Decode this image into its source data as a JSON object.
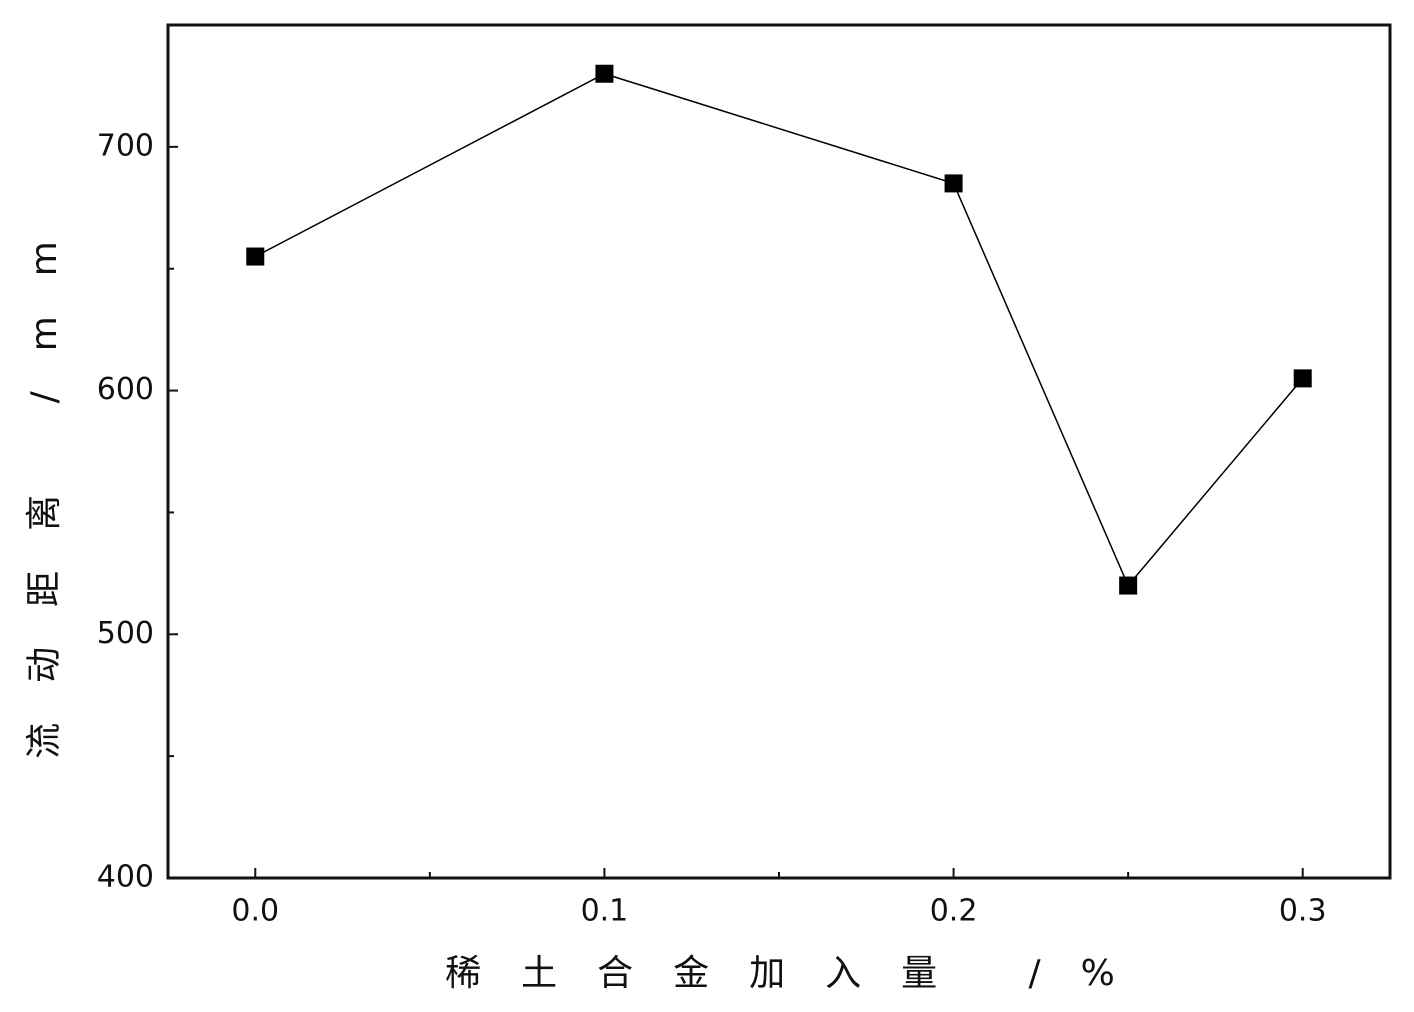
{
  "chart_data": {
    "type": "line",
    "x": [
      0,
      0.1,
      0.2,
      0.25,
      0.3
    ],
    "series": [
      {
        "name": "流动距离",
        "color": "#000000",
        "values": [
          655,
          730,
          685,
          520,
          605
        ]
      }
    ],
    "xlim": [
      -0.025,
      0.325
    ],
    "xticks": [
      {
        "value": 0,
        "label": "0.0"
      },
      0.1,
      0.2,
      0.3
    ],
    "xminorticks": [
      0.05,
      0.15,
      0.25
    ],
    "ylim": [
      400,
      750
    ],
    "yticks": [
      400,
      500,
      600,
      700
    ],
    "yminorticks": [
      450,
      550,
      650
    ],
    "xlabel": "稀土合金加入量 /%",
    "ylabel": "流动距离 /mm",
    "grid": false
  }
}
